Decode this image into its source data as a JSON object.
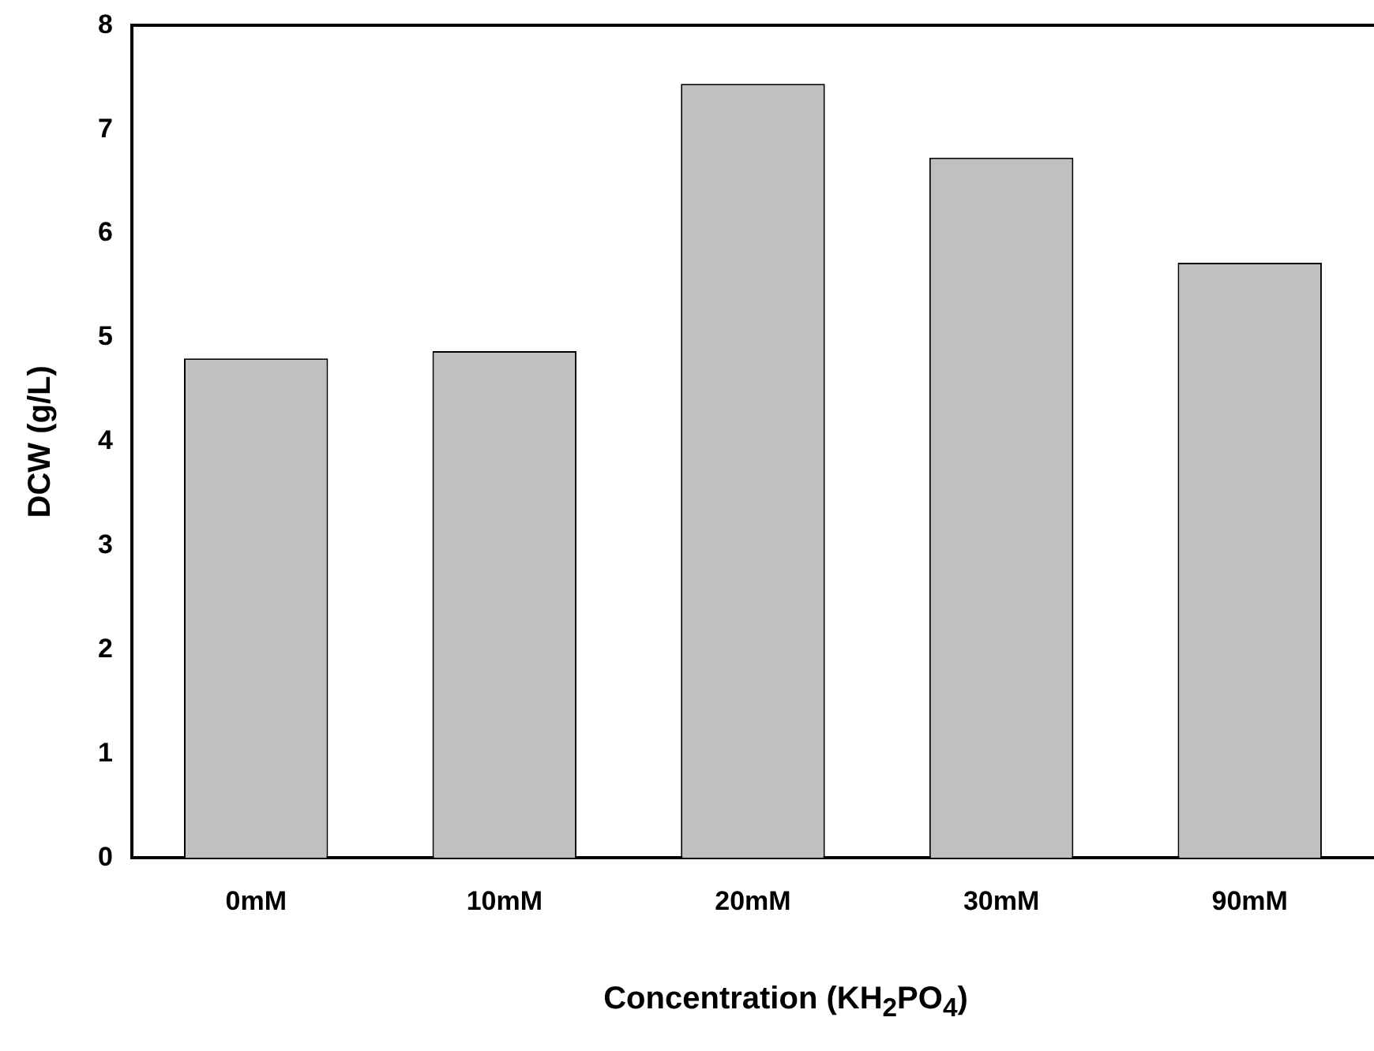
{
  "chart_data": {
    "type": "bar",
    "xlabel": "Concentration (KH$_{2}$PO$_{4}$)",
    "ylabel": "DCW (g/L)",
    "categories": [
      "0mM",
      "10mM",
      "20mM",
      "30mM",
      "90mM"
    ],
    "values": [
      4.8,
      4.87,
      7.44,
      6.73,
      5.72
    ],
    "color": "#c0c0c0",
    "ylim": [
      0,
      8
    ],
    "yticks": [
      0,
      1,
      2,
      3,
      4,
      5,
      6,
      7,
      8
    ],
    "grid": false
  }
}
